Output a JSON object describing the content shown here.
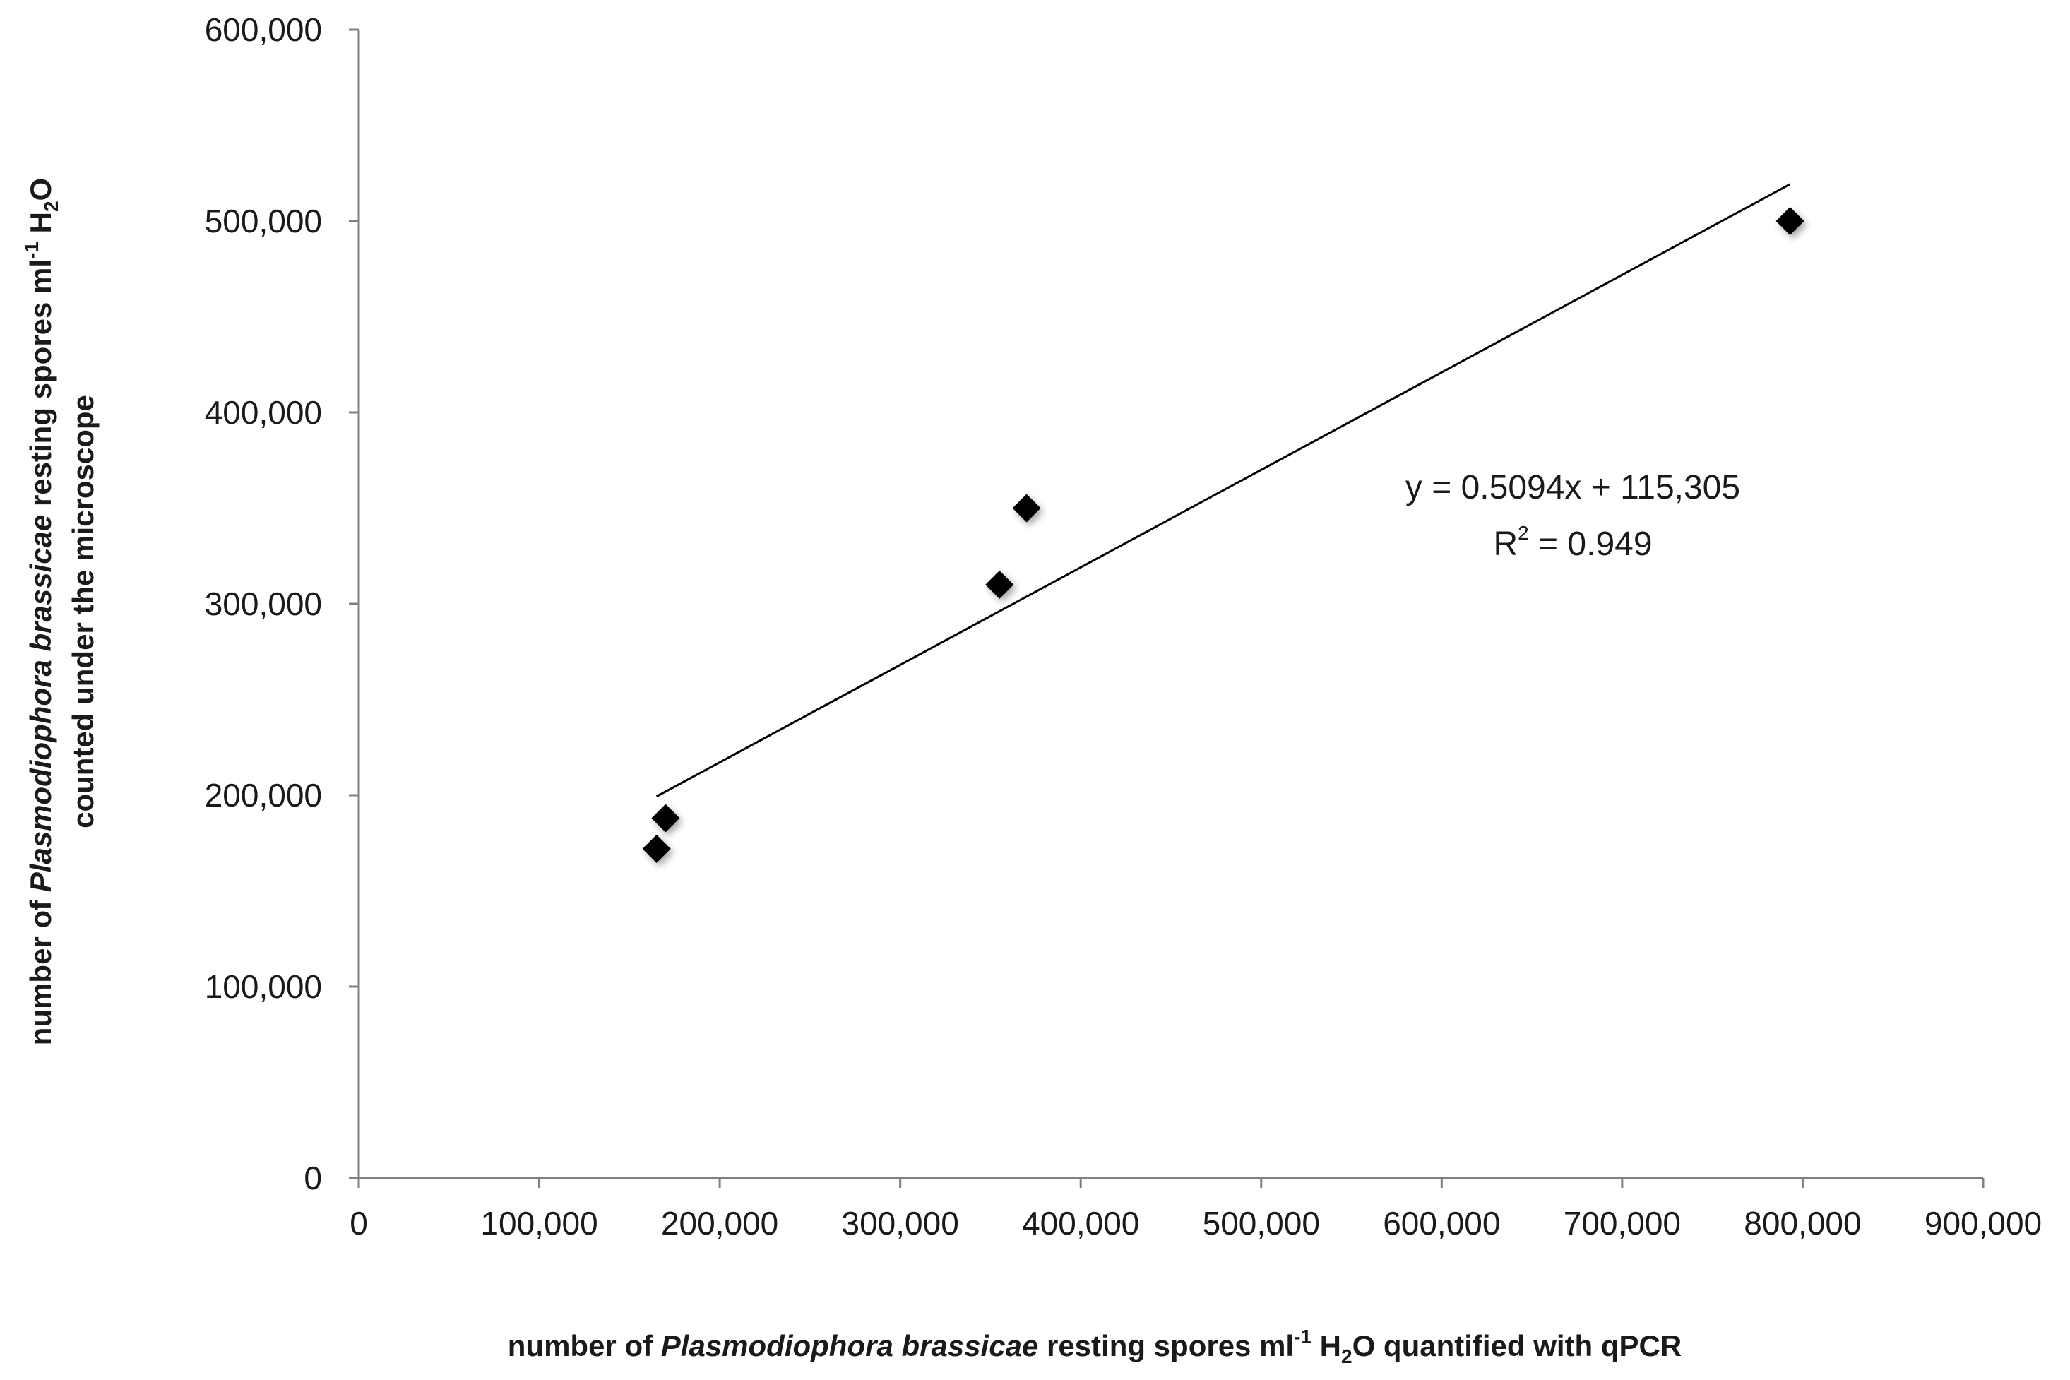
{
  "chart_data": {
    "type": "scatter",
    "title": "",
    "xlabel": {
      "pre": "number of ",
      "italic": "Plasmodiophora brassicae",
      "mid": " resting spores ml",
      "sup": "-1",
      "h": " H",
      "sub": "2",
      "post": "O quantified with qPCR"
    },
    "ylabel": {
      "line1_pre": "number of ",
      "line1_italic": "Plasmodiophora brassicae",
      "line1_mid": " resting spores ml",
      "line1_sup": "-1",
      "line1_h": " H",
      "line1_sub": "2",
      "line1_post": "O",
      "line2": "counted under the microscope"
    },
    "xlim": [
      0,
      900000
    ],
    "ylim": [
      0,
      600000
    ],
    "x_ticks": [
      0,
      100000,
      200000,
      300000,
      400000,
      500000,
      600000,
      700000,
      800000,
      900000
    ],
    "x_tick_labels": [
      "0",
      "100,000",
      "200,000",
      "300,000",
      "400,000",
      "500,000",
      "600,000",
      "700,000",
      "800,000",
      "900,000"
    ],
    "y_ticks": [
      0,
      100000,
      200000,
      300000,
      400000,
      500000,
      600000
    ],
    "y_tick_labels": [
      "0",
      "100,000",
      "200,000",
      "300,000",
      "400,000",
      "500,000",
      "600,000"
    ],
    "grid": false,
    "legend": "none",
    "marker": "diamond",
    "marker_color": "#000000",
    "points": [
      {
        "x": 165000,
        "y": 172000
      },
      {
        "x": 170000,
        "y": 188000
      },
      {
        "x": 355000,
        "y": 310000
      },
      {
        "x": 370000,
        "y": 350000
      },
      {
        "x": 793000,
        "y": 500000
      }
    ],
    "trendline": {
      "slope": 0.5094,
      "intercept": 115305,
      "x_range": [
        165000,
        793000
      ],
      "color": "#000000"
    },
    "annotation": {
      "equation": "y = 0.5094x + 115,305",
      "r2_pre": "R",
      "r2_sup": "2",
      "r2_post": " = 0.949"
    }
  }
}
